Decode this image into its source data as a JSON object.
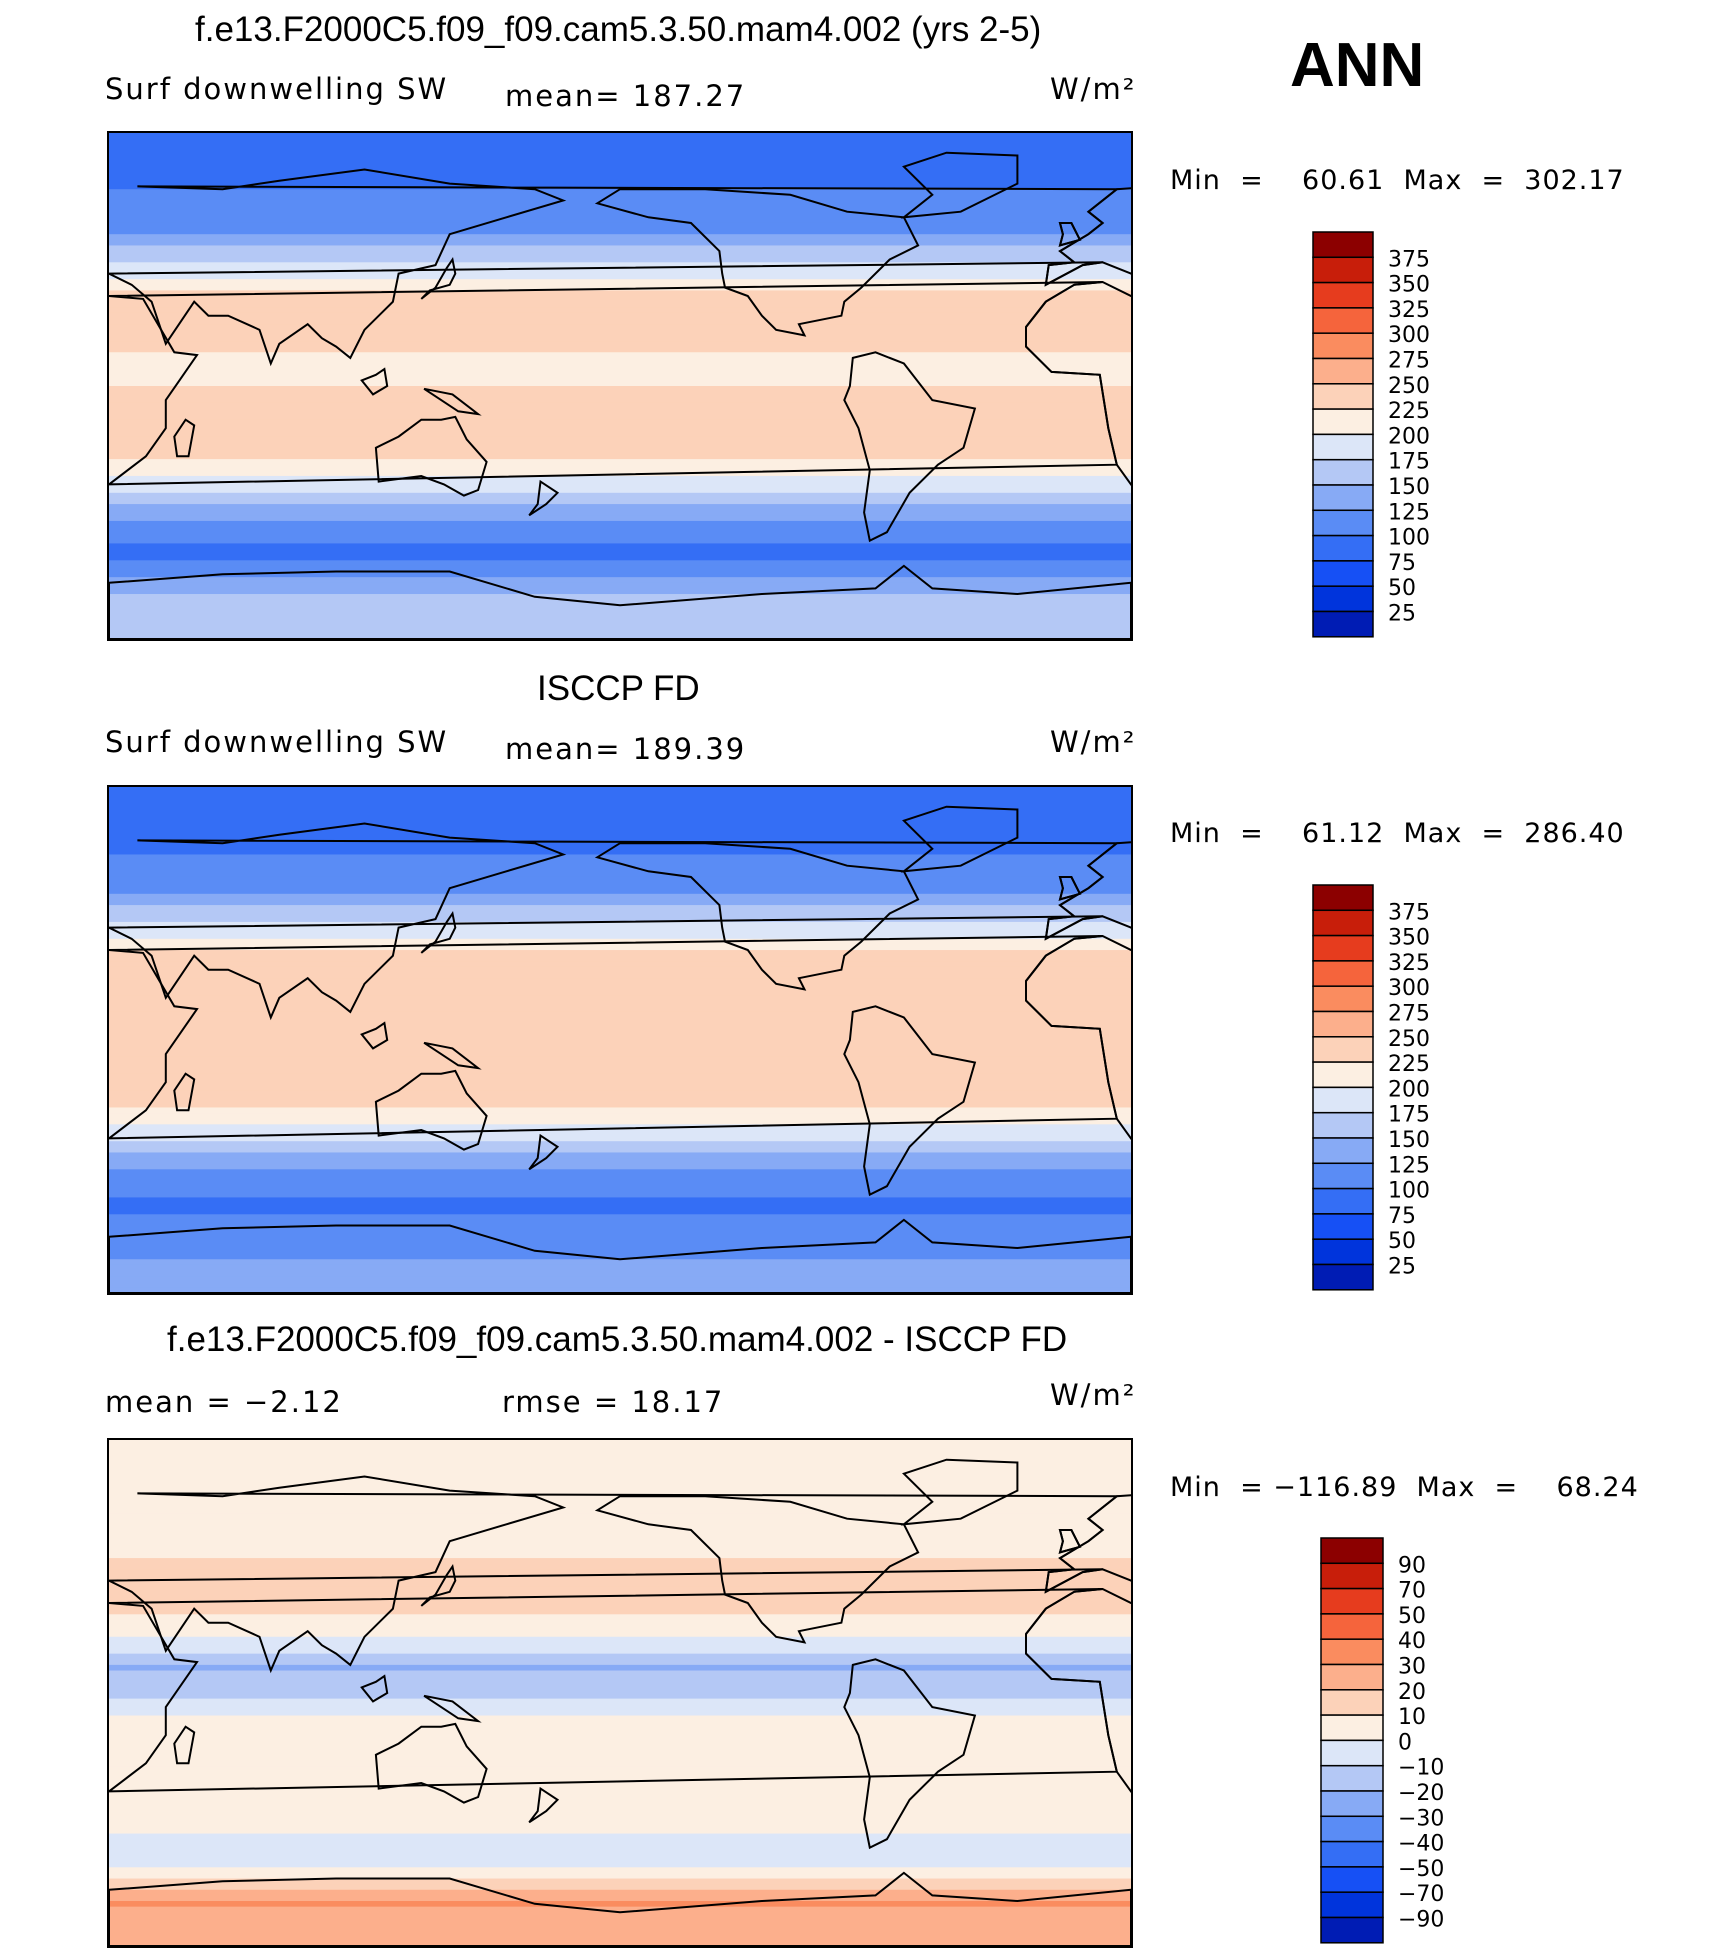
{
  "season": "ANN",
  "unit_label": "W/m²",
  "panels": [
    {
      "title": "f.e13.F2000C5.f09_f09.cam5.3.50.mam4.002 (yrs 2-5)",
      "left_label": "Surf  downwelling  SW",
      "center_label": "mean=  187.27",
      "minmax": "Min  =    60.61  Max  =  302.17"
    },
    {
      "title": "ISCCP FD",
      "left_label": "Surf  downwelling  SW",
      "center_label": "mean=  189.39",
      "minmax": "Min  =    61.12  Max  =  286.40"
    },
    {
      "title": "f.e13.F2000C5.f09_f09.cam5.3.50.mam4.002 - ISCCP FD",
      "left_label": "mean  =    −2.12",
      "center_label": "rmse  =    18.17",
      "minmax": "Min  = −116.89  Max  =    68.24"
    }
  ],
  "colors": {
    "field_scale": [
      "#00007d",
      "#001cb4",
      "#0034dc",
      "#1650f5",
      "#346ef5",
      "#5a8cf5",
      "#87aaf5",
      "#b4c8f5",
      "#dce6f8",
      "#fcefe2",
      "#fcd2b9",
      "#fcaf8c",
      "#fa8c5f",
      "#f5643c",
      "#e63c1e",
      "#c81e0a",
      "#8c0000"
    ],
    "diff_scale": [
      "#00007d",
      "#001cb4",
      "#0034dc",
      "#1650f5",
      "#346ef5",
      "#5a8cf5",
      "#87aaf5",
      "#b4c8f5",
      "#dce6f8",
      "#fcefe2",
      "#fcd2b9",
      "#fcaf8c",
      "#fa8c5f",
      "#f5643c",
      "#e63c1e",
      "#c81e0a",
      "#8c0000"
    ]
  },
  "chart_data": [
    {
      "type": "heatmap",
      "title": "f.e13.F2000C5.f09_f09.cam5.3.50.mam4.002 (yrs 2-5)",
      "variable": "Surf  downwelling  SW",
      "units": "W/m²",
      "mean": 187.27,
      "min": 60.61,
      "max": 302.17,
      "colorbar_levels": [
        375,
        350,
        325,
        300,
        275,
        250,
        225,
        200,
        175,
        150,
        125,
        100,
        75,
        50,
        25
      ],
      "zonal_profile": [
        {
          "lat": 90,
          "v": 95
        },
        {
          "lat": 70,
          "v": 100
        },
        {
          "lat": 55,
          "v": 120
        },
        {
          "lat": 45,
          "v": 170
        },
        {
          "lat": 30,
          "v": 240
        },
        {
          "lat": 20,
          "v": 250
        },
        {
          "lat": 10,
          "v": 215
        },
        {
          "lat": 0,
          "v": 225
        },
        {
          "lat": -10,
          "v": 250
        },
        {
          "lat": -20,
          "v": 245
        },
        {
          "lat": -30,
          "v": 210
        },
        {
          "lat": -40,
          "v": 160
        },
        {
          "lat": -50,
          "v": 110
        },
        {
          "lat": -60,
          "v": 90
        },
        {
          "lat": -75,
          "v": 155
        },
        {
          "lat": -90,
          "v": 165
        }
      ]
    },
    {
      "type": "heatmap",
      "title": "ISCCP FD",
      "variable": "Surf  downwelling  SW",
      "units": "W/m²",
      "mean": 189.39,
      "min": 61.12,
      "max": 286.4,
      "colorbar_levels": [
        375,
        350,
        325,
        300,
        275,
        250,
        225,
        200,
        175,
        150,
        125,
        100,
        75,
        50,
        25
      ],
      "zonal_profile": [
        {
          "lat": 90,
          "v": 90
        },
        {
          "lat": 70,
          "v": 95
        },
        {
          "lat": 55,
          "v": 115
        },
        {
          "lat": 45,
          "v": 160
        },
        {
          "lat": 30,
          "v": 230
        },
        {
          "lat": 20,
          "v": 245
        },
        {
          "lat": 10,
          "v": 235
        },
        {
          "lat": 0,
          "v": 235
        },
        {
          "lat": -10,
          "v": 245
        },
        {
          "lat": -20,
          "v": 240
        },
        {
          "lat": -30,
          "v": 200
        },
        {
          "lat": -40,
          "v": 150
        },
        {
          "lat": -50,
          "v": 110
        },
        {
          "lat": -60,
          "v": 95
        },
        {
          "lat": -75,
          "v": 120
        },
        {
          "lat": -90,
          "v": 140
        }
      ]
    },
    {
      "type": "heatmap",
      "title": "f.e13.F2000C5.f09_f09.cam5.3.50.mam4.002 - ISCCP FD",
      "units": "W/m²",
      "mean": -2.12,
      "rmse": 18.17,
      "min": -116.89,
      "max": 68.24,
      "colorbar_levels": [
        90,
        70,
        50,
        40,
        30,
        20,
        10,
        0,
        -10,
        -20,
        -30,
        -40,
        -50,
        -70,
        -90
      ],
      "colorbar_labels": [
        "90",
        "70",
        "50",
        "40",
        "30",
        "20",
        "10",
        "0",
        "−10",
        "−20",
        "−30",
        "−40",
        "−50",
        "−70",
        "−90"
      ],
      "zonal_profile": [
        {
          "lat": 90,
          "v": 10
        },
        {
          "lat": 70,
          "v": 8
        },
        {
          "lat": 55,
          "v": 5
        },
        {
          "lat": 45,
          "v": 12
        },
        {
          "lat": 30,
          "v": 12
        },
        {
          "lat": 20,
          "v": 2
        },
        {
          "lat": 10,
          "v": -22
        },
        {
          "lat": 0,
          "v": -12
        },
        {
          "lat": -10,
          "v": 2
        },
        {
          "lat": -20,
          "v": 4
        },
        {
          "lat": -30,
          "v": 8
        },
        {
          "lat": -40,
          "v": 8
        },
        {
          "lat": -50,
          "v": 0
        },
        {
          "lat": -60,
          "v": -4
        },
        {
          "lat": -75,
          "v": 30
        },
        {
          "lat": -90,
          "v": 20
        }
      ]
    }
  ]
}
